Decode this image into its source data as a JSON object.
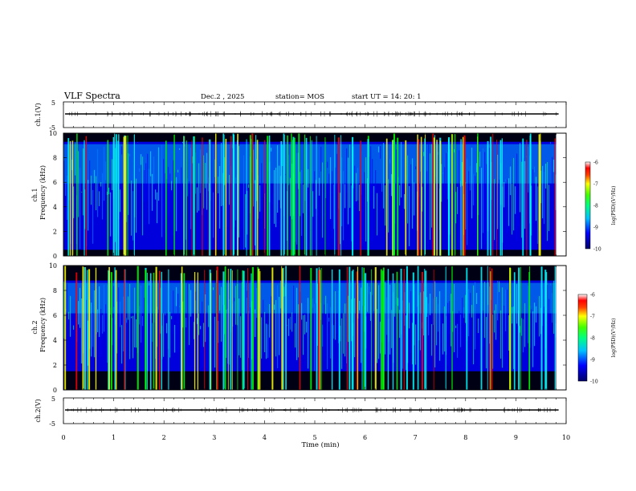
{
  "header": {
    "title": "VLF Spectra",
    "date": "Dec.2 , 2025",
    "station": "station= MOS",
    "start": "start UT =  14: 20: 1"
  },
  "chart_data": [
    {
      "type": "line",
      "name": "ch1-waveform",
      "ylabel": "ch.1(V)",
      "ylim": [
        -5,
        5
      ],
      "yticks": [
        "5",
        "-5"
      ],
      "xlim": [
        0,
        10
      ],
      "baseline": 0,
      "trace_color": "#000000"
    },
    {
      "type": "heatmap",
      "name": "ch1-spectrogram",
      "ylabel": "Frequency (kHz)",
      "channel_label": "ch.1",
      "ylim": [
        0,
        10
      ],
      "yticks": [
        "0",
        "2",
        "4",
        "6",
        "8",
        "10"
      ],
      "xlim": [
        0,
        9.8
      ],
      "band_low_khz": 0.5,
      "band_high_khz": 9.3,
      "colorbar": {
        "label": "log(PSD)(V²/Hz)",
        "range": [
          -10,
          -6
        ],
        "ticks": [
          "-6",
          "-7",
          "-8",
          "-9",
          "-10"
        ]
      }
    },
    {
      "type": "heatmap",
      "name": "ch2-spectrogram",
      "ylabel": "Frequency (kHz)",
      "channel_label": "ch.2",
      "ylim": [
        0,
        10
      ],
      "yticks": [
        "0",
        "2",
        "4",
        "6",
        "8",
        "10"
      ],
      "xlim": [
        0,
        9.8
      ],
      "band_low_khz": 1.5,
      "band_high_khz": 8.8,
      "colorbar": {
        "label": "log(PSD)(V²/Hz)",
        "range": [
          -10,
          -6
        ],
        "ticks": [
          "-6",
          "-7",
          "-8",
          "-9",
          "-10"
        ]
      }
    },
    {
      "type": "line",
      "name": "ch2-waveform",
      "ylabel": "ch.2(V)",
      "ylim": [
        -5,
        5
      ],
      "yticks": [
        "5",
        "-5"
      ],
      "xlim": [
        0,
        10
      ],
      "baseline": 0,
      "trace_color": "#000000"
    }
  ],
  "xaxis": {
    "label": "Time (min)",
    "ticks": [
      "0",
      "1",
      "2",
      "3",
      "4",
      "5",
      "6",
      "7",
      "8",
      "9",
      "10"
    ],
    "range": [
      0,
      10
    ]
  },
  "colormap": [
    "#000066",
    "#0000ff",
    "#0080ff",
    "#00ffff",
    "#00ff80",
    "#00ff00",
    "#ffff00",
    "#ff8000",
    "#ff0000",
    "#ffffff"
  ]
}
